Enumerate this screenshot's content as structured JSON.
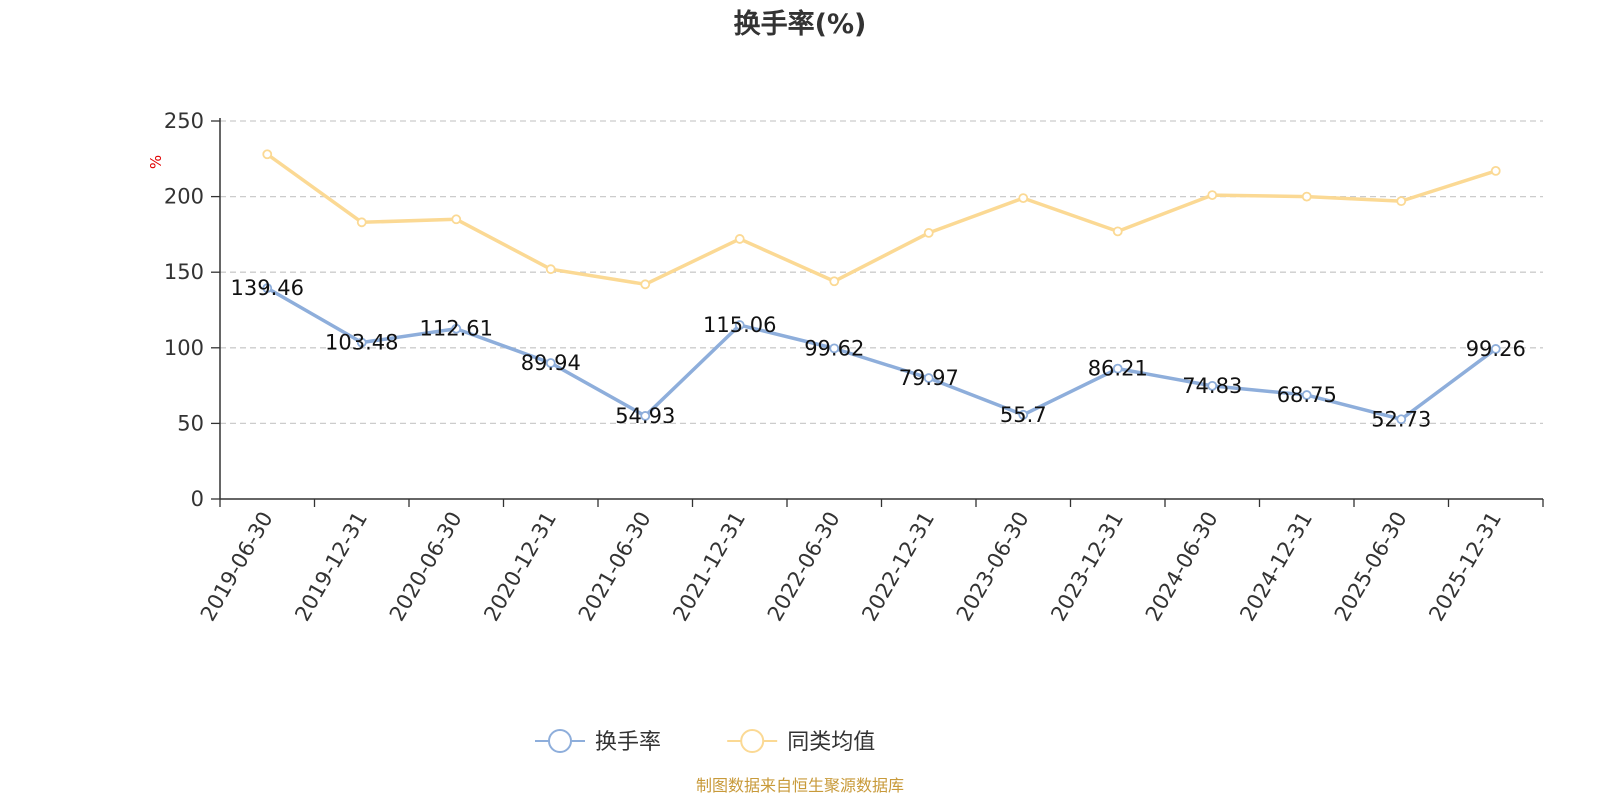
{
  "chart_data": {
    "type": "line",
    "title": "换手率(%)",
    "ylabel": "%",
    "xlabel": "",
    "ylim": [
      0,
      250
    ],
    "yticks": [
      0,
      50,
      100,
      150,
      200,
      250
    ],
    "grid": true,
    "legend_position": "bottom",
    "categories": [
      "2019-06-30",
      "2019-12-31",
      "2020-06-30",
      "2020-12-31",
      "2021-06-30",
      "2021-12-31",
      "2022-06-30",
      "2022-12-31",
      "2023-06-30",
      "2023-12-31",
      "2024-06-30",
      "2024-12-31",
      "2025-06-30",
      "2025-12-31"
    ],
    "series": [
      {
        "name": "换手率",
        "color": "#8eaedb",
        "values": [
          139.46,
          103.48,
          112.61,
          89.94,
          54.93,
          115.06,
          99.62,
          79.97,
          55.7,
          86.21,
          74.83,
          68.75,
          52.73,
          99.26
        ],
        "labels": [
          "139.46",
          "103.48",
          "112.61",
          "89.94",
          "54.93",
          "115.06",
          "99.62",
          "79.97",
          "55.7",
          "86.21",
          "74.83",
          "68.75",
          "52.73",
          "99.26"
        ],
        "show_labels": true
      },
      {
        "name": "同类均值",
        "color": "#fbd994",
        "values": [
          228,
          183,
          185,
          152,
          142,
          172,
          144,
          176,
          199,
          177,
          201,
          200,
          197,
          217
        ],
        "show_labels": false
      }
    ],
    "source": "制图数据来自恒生聚源数据库"
  }
}
